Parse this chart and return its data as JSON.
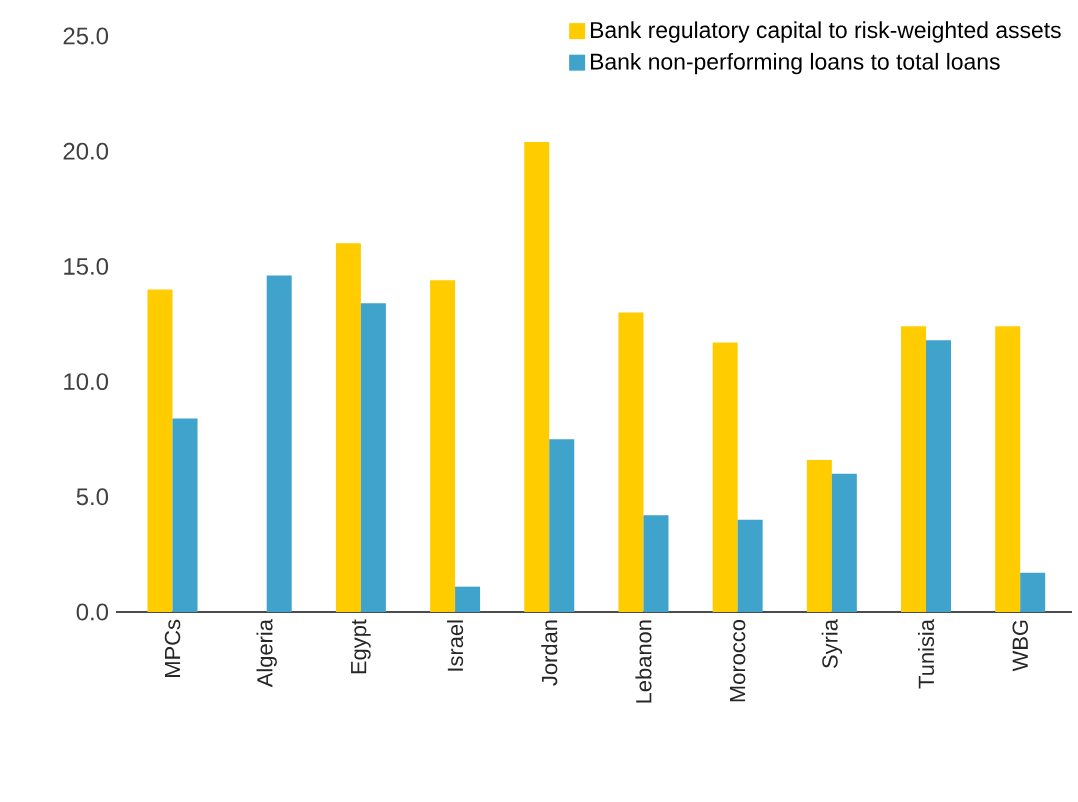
{
  "chart_data": {
    "type": "bar",
    "categories": [
      "MPCs",
      "Algeria",
      "Egypt",
      "Israel",
      "Jordan",
      "Lebanon",
      "Morocco",
      "Syria",
      "Tunisia",
      "WBG"
    ],
    "series": [
      {
        "name": "Bank regulatory capital to risk-weighted assets",
        "color": "#ffcc00",
        "values": [
          14.0,
          null,
          16.0,
          14.4,
          20.4,
          13.0,
          11.7,
          6.6,
          12.4,
          12.4
        ]
      },
      {
        "name": "Bank non-performing loans to total loans",
        "color": "#3fa3cb",
        "values": [
          8.4,
          14.6,
          13.4,
          1.1,
          7.5,
          4.2,
          4.0,
          6.0,
          11.8,
          1.7
        ]
      }
    ],
    "ylim": [
      0,
      25
    ],
    "yticks": [
      {
        "value": 0,
        "label": "0.0"
      },
      {
        "value": 5,
        "label": "5.0"
      },
      {
        "value": 10,
        "label": "10.0"
      },
      {
        "value": 15,
        "label": "15.0"
      },
      {
        "value": 20,
        "label": "20.0"
      },
      {
        "value": 25,
        "label": "25.0"
      }
    ],
    "grid": false,
    "legend": "top right"
  }
}
